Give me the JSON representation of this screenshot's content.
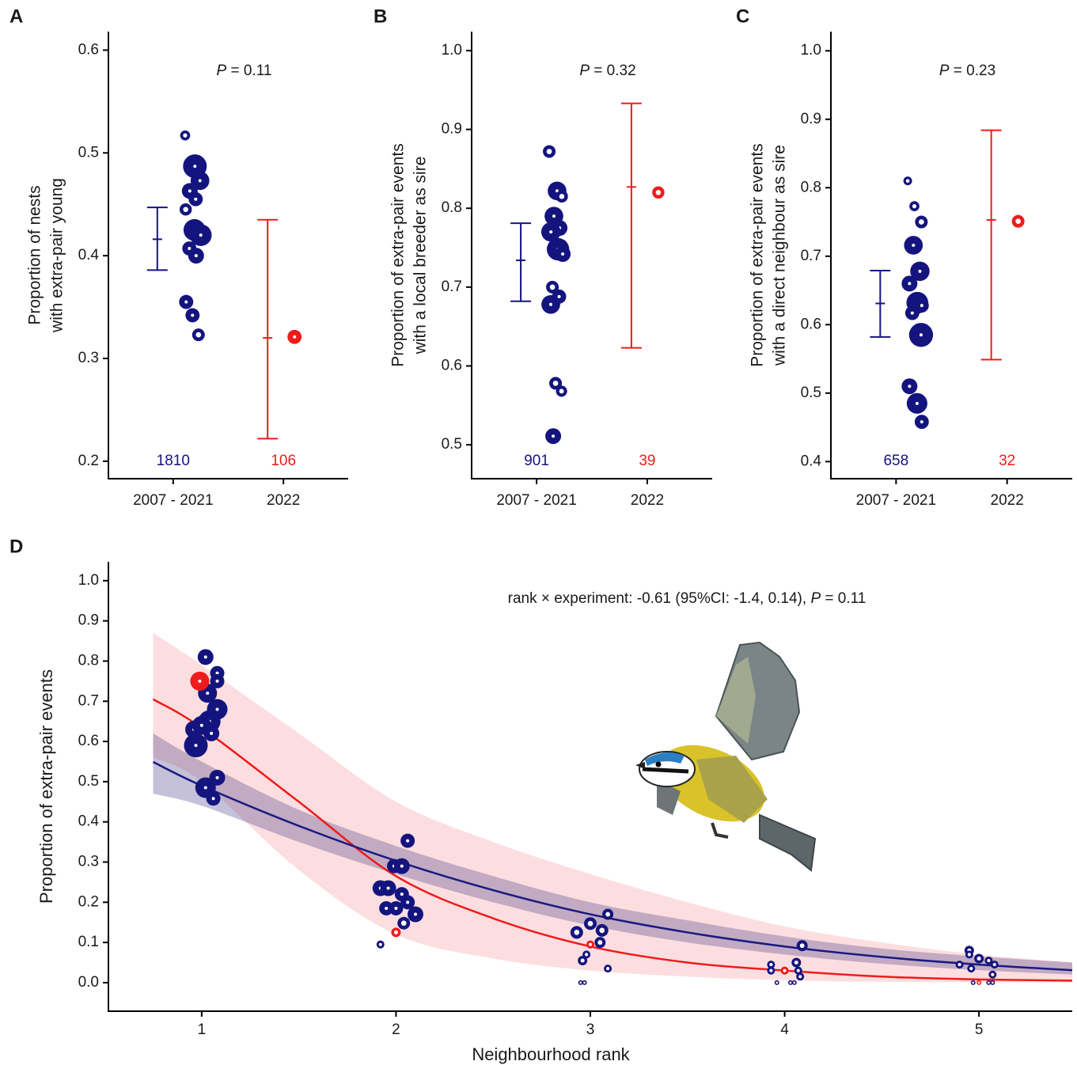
{
  "chart_data": [
    {
      "type": "dot-errorbar",
      "panel_label": "A",
      "ylabel": [
        "Proportion of nests",
        "with extra-pair young"
      ],
      "annotation": {
        "italic": "P",
        "text": " = 0.11"
      },
      "categories": [
        "2007 - 2021",
        "2022"
      ],
      "ylim": [
        0.183,
        0.618
      ],
      "yticks": [
        0.2,
        0.3,
        0.4,
        0.5,
        0.6
      ],
      "groups": [
        {
          "color": "#14147f",
          "values": [
            0.517,
            0.487,
            0.473,
            0.463,
            0.455,
            0.445,
            0.425,
            0.42,
            0.407,
            0.4,
            0.355,
            0.342,
            0.323
          ],
          "sizes": [
            40,
            225,
            140,
            100,
            80,
            60,
            190,
            190,
            80,
            100,
            80,
            80,
            64
          ],
          "mean": 0.416,
          "ci": [
            0.386,
            0.447
          ],
          "n": 1810
        },
        {
          "color": "#ee1c1c",
          "values": [
            0.321
          ],
          "sizes": [
            80
          ],
          "mean": 0.32,
          "ci": [
            0.222,
            0.435
          ],
          "n": 106
        }
      ]
    },
    {
      "type": "dot-errorbar",
      "panel_label": "B",
      "ylabel": [
        "Proportion of extra-pair events",
        "with a local breeder as sire"
      ],
      "annotation": {
        "italic": "P",
        "text": " = 0.32"
      },
      "categories": [
        "2007 - 2021",
        "2022"
      ],
      "ylim": [
        0.457,
        1.024
      ],
      "yticks": [
        0.5,
        0.6,
        0.7,
        0.8,
        0.9,
        {
          "value": 1,
          "label": "1.0"
        }
      ],
      "groups": [
        {
          "color": "#14147f",
          "values": [
            0.872,
            0.822,
            0.815,
            0.79,
            0.775,
            0.77,
            0.748,
            0.742,
            0.7,
            0.688,
            0.678,
            0.578,
            0.568,
            0.511
          ],
          "sizes": [
            64,
            140,
            60,
            140,
            100,
            150,
            200,
            100,
            64,
            80,
            140,
            64,
            50,
            100
          ],
          "mean": 0.734,
          "ci": [
            0.682,
            0.781
          ],
          "n": 901
        },
        {
          "color": "#ee1c1c",
          "values": [
            0.82
          ],
          "sizes": [
            60
          ],
          "mean": 0.827,
          "ci": [
            0.623,
            0.933
          ],
          "n": 39
        }
      ]
    },
    {
      "type": "dot-errorbar",
      "panel_label": "C",
      "ylabel": [
        "Proportion of extra-pair events",
        "with a direct neighbour as sire"
      ],
      "annotation": {
        "italic": "P",
        "text": " = 0.23"
      },
      "categories": [
        "2007 - 2021",
        "2022"
      ],
      "ylim": [
        0.375,
        1.028
      ],
      "yticks": [
        0.4,
        0.5,
        0.6,
        0.7,
        0.8,
        0.9,
        {
          "value": 1,
          "label": "1.0"
        }
      ],
      "groups": [
        {
          "color": "#14147f",
          "values": [
            0.81,
            0.773,
            0.75,
            0.716,
            0.678,
            0.66,
            0.632,
            0.628,
            0.617,
            0.585,
            0.51,
            0.485,
            0.458
          ],
          "sizes": [
            30,
            40,
            64,
            140,
            150,
            100,
            190,
            80,
            80,
            230,
            100,
            170,
            80
          ],
          "mean": 0.631,
          "ci": [
            0.582,
            0.679
          ],
          "n": 658
        },
        {
          "color": "#ee1c1c",
          "values": [
            0.751
          ],
          "sizes": [
            64
          ],
          "mean": 0.753,
          "ci": [
            0.549,
            0.884
          ],
          "n": 32
        }
      ]
    },
    {
      "type": "bubble-curve",
      "panel_label": "D",
      "xlabel": "Neighbourhood rank",
      "ylabel": "Proportion of extra-pair events",
      "annotation": {
        "text": "rank × experiment: -0.61 (95%CI: -1.4, 0.14), ",
        "italic": "P",
        "text2": " = 0.11"
      },
      "xlim": [
        0.52,
        5.48
      ],
      "ylim": [
        -0.071,
        1.047
      ],
      "xticks": [
        1,
        2,
        3,
        4,
        5
      ],
      "yticks": [
        {
          "value": 0,
          "label": "0.0"
        },
        0.1,
        0.2,
        0.3,
        0.4,
        0.5,
        0.6,
        0.7,
        0.8,
        0.9,
        {
          "value": 1,
          "label": "1.0"
        }
      ],
      "fits": [
        {
          "color": "#ee1c1c",
          "band_color": "rgba(250,160,165,0.35)",
          "x": [
            0.75,
            1,
            1.5,
            2,
            2.5,
            3,
            3.5,
            4,
            4.5,
            5,
            5.48
          ],
          "values": [
            0.705,
            0.634,
            0.45,
            0.265,
            0.16,
            0.09,
            0.05,
            0.03,
            0.015,
            0.008,
            0.005
          ],
          "lower": [
            0.56,
            0.5,
            0.28,
            0.12,
            0.06,
            0.03,
            0.015,
            0.006,
            0.002,
            0.001,
            0.0
          ],
          "upper": [
            0.87,
            0.79,
            0.62,
            0.45,
            0.35,
            0.27,
            0.2,
            0.14,
            0.1,
            0.07,
            0.05
          ]
        },
        {
          "color": "#1a1a80",
          "band_color": "rgba(60,50,130,0.3)",
          "x": [
            0.75,
            1,
            1.5,
            2,
            2.5,
            3,
            3.5,
            4,
            4.5,
            5,
            5.48
          ],
          "values": [
            0.549,
            0.49,
            0.39,
            0.303,
            0.23,
            0.17,
            0.125,
            0.09,
            0.064,
            0.045,
            0.031
          ],
          "lower": [
            0.47,
            0.44,
            0.35,
            0.27,
            0.2,
            0.142,
            0.1,
            0.07,
            0.047,
            0.031,
            0.02
          ],
          "upper": [
            0.62,
            0.55,
            0.43,
            0.34,
            0.265,
            0.2,
            0.155,
            0.115,
            0.085,
            0.065,
            0.05
          ]
        }
      ],
      "series": [
        {
          "color": "#14147f",
          "x": [
            1.02,
            1.08,
            1.08,
            1.03,
            1.08,
            0.96,
            1.04,
            1.0,
            1.05,
            0.97,
            1.08,
            1.02,
            1.06,
            2.06,
            1.99,
            2.03,
            1.92,
            1.96,
            2.03,
            2.06,
            2.0,
            1.95,
            2.1,
            2.04,
            1.92,
            3.09,
            3.0,
            2.93,
            3.06,
            3.05,
            2.98,
            2.96,
            3.09,
            2.95,
            2.97,
            4.09,
            3.93,
            4.06,
            4.07,
            4.08,
            3.93,
            3.96,
            4.03,
            4.05,
            4.95,
            4.95,
            5.0,
            4.9,
            5.05,
            5.08,
            4.96,
            5.07,
            4.97,
            5.05,
            5.07
          ],
          "values": [
            0.81,
            0.77,
            0.75,
            0.72,
            0.68,
            0.63,
            0.65,
            0.64,
            0.62,
            0.59,
            0.51,
            0.485,
            0.458,
            0.353,
            0.29,
            0.29,
            0.235,
            0.235,
            0.22,
            0.2,
            0.185,
            0.185,
            0.17,
            0.148,
            0.095,
            0.17,
            0.147,
            0.125,
            0.13,
            0.1,
            0.07,
            0.055,
            0.035,
            0,
            0,
            0.092,
            0.045,
            0.05,
            0.03,
            0.015,
            0.03,
            0,
            0,
            0,
            0.08,
            0.07,
            0.06,
            0.045,
            0.055,
            0.045,
            0.035,
            0.02,
            0,
            0,
            0
          ],
          "sizes": [
            100,
            81,
            81,
            144,
            169,
            121,
            196,
            144,
            100,
            225,
            100,
            169,
            81,
            81,
            81,
            100,
            100,
            100,
            81,
            81,
            81,
            81,
            100,
            64,
            25,
            49,
            64,
            64,
            64,
            49,
            25,
            36,
            25,
            9,
            9,
            49,
            25,
            36,
            25,
            25,
            25,
            9,
            9,
            9,
            36,
            25,
            36,
            25,
            25,
            25,
            25,
            25,
            9,
            9,
            9
          ]
        },
        {
          "color": "#ee1c1c",
          "x": [
            0.99,
            2.0,
            3.0,
            4.0,
            5.0
          ],
          "values": [
            0.75,
            0.125,
            0.095,
            0.03,
            0.0
          ],
          "sizes": [
            144,
            36,
            25,
            25,
            9
          ]
        }
      ]
    }
  ]
}
